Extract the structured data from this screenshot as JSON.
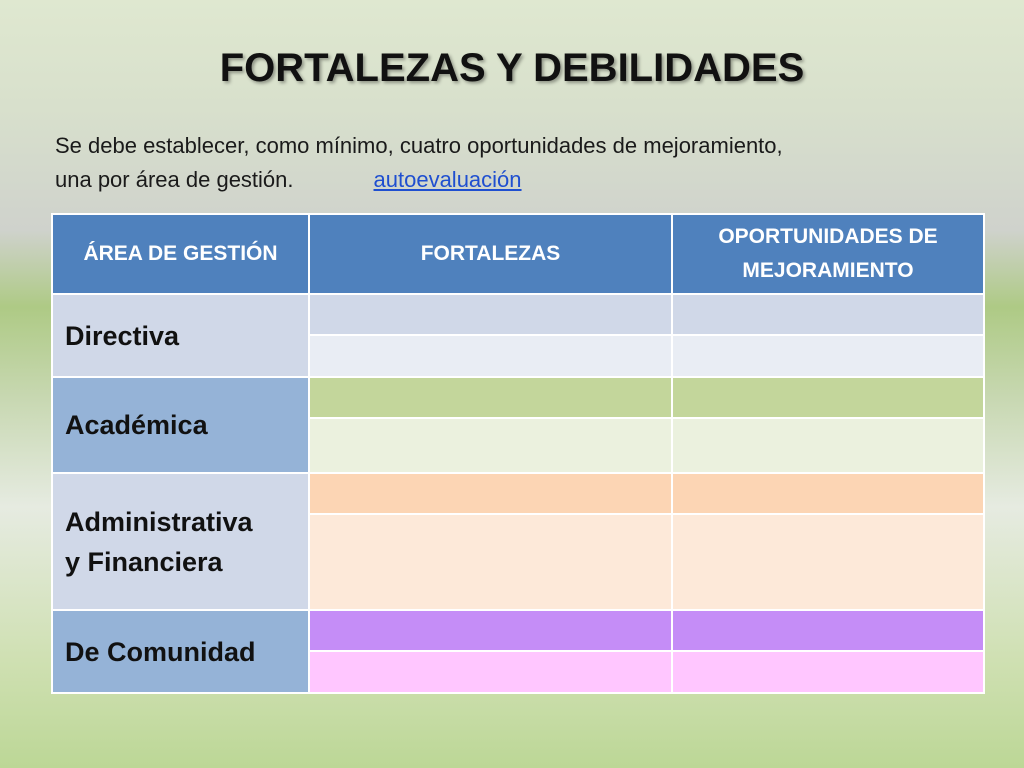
{
  "slide": {
    "title": "FORTALEZAS Y DEBILIDADES",
    "intro_line1": "Se debe establecer, como mínimo, cuatro oportunidades de mejoramiento,",
    "intro_line2": "una por área de gestión.",
    "link_text": "autoevaluación"
  },
  "table": {
    "headers": [
      "ÁREA DE GESTIÓN",
      "FORTALEZAS",
      "OPORTUNIDADES DE MEJORAMIENTO"
    ],
    "rows": [
      {
        "area": "Directiva",
        "area_color": "#d0d8e8",
        "row1_color": "#d0d8e8",
        "row2_color": "#e9edf4"
      },
      {
        "area": "Académica",
        "area_color": "#95b3d7",
        "row1_color": "#c3d69b",
        "row2_color": "#ebf1de"
      },
      {
        "area_line1": "Administrativa",
        "area_line2": "y Financiera",
        "area_color": "#d0d8e8",
        "row1_color": "#fcd5b4",
        "row2_color": "#fde9d9"
      },
      {
        "area": "De Comunidad",
        "area_color": "#95b3d7",
        "row1_color": "#c58df7",
        "row2_color": "#ffc6ff"
      }
    ]
  }
}
